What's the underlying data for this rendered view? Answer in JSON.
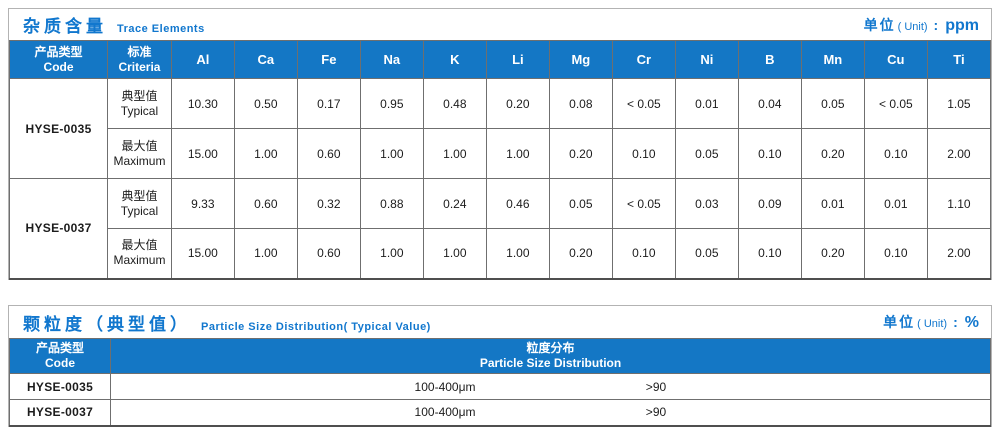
{
  "colors": {
    "header_bg": "#1477c5",
    "title_blue": "#1177ce"
  },
  "table1": {
    "title_zh": "杂质含量",
    "title_en": "Trace Elements",
    "unit_label_zh": "单位",
    "unit_label_en": "( Unit)",
    "unit_colon": ":",
    "unit_value": "ppm",
    "col_code_zh": "产品类型",
    "col_code_en": "Code",
    "col_criteria_zh": "标准",
    "col_criteria_en": "Criteria",
    "elements": [
      "Al",
      "Ca",
      "Fe",
      "Na",
      "K",
      "Li",
      "Mg",
      "Cr",
      "Ni",
      "B",
      "Mn",
      "Cu",
      "Ti"
    ],
    "products": [
      {
        "code": "HYSE-0035",
        "rows": [
          {
            "criteria_zh": "典型值",
            "criteria_en": "Typical",
            "values": [
              "10.30",
              "0.50",
              "0.17",
              "0.95",
              "0.48",
              "0.20",
              "0.08",
              "< 0.05",
              "0.01",
              "0.04",
              "0.05",
              "< 0.05",
              "1.05"
            ]
          },
          {
            "criteria_zh": "最大值",
            "criteria_en": "Maximum",
            "values": [
              "15.00",
              "1.00",
              "0.60",
              "1.00",
              "1.00",
              "1.00",
              "0.20",
              "0.10",
              "0.05",
              "0.10",
              "0.20",
              "0.10",
              "2.00"
            ]
          }
        ]
      },
      {
        "code": "HYSE-0037",
        "rows": [
          {
            "criteria_zh": "典型值",
            "criteria_en": "Typical",
            "values": [
              "9.33",
              "0.60",
              "0.32",
              "0.88",
              "0.24",
              "0.46",
              "0.05",
              "< 0.05",
              "0.03",
              "0.09",
              "0.01",
              "0.01",
              "1.10"
            ]
          },
          {
            "criteria_zh": "最大值",
            "criteria_en": "Maximum",
            "values": [
              "15.00",
              "1.00",
              "0.60",
              "1.00",
              "1.00",
              "1.00",
              "0.20",
              "0.10",
              "0.05",
              "0.10",
              "0.20",
              "0.10",
              "2.00"
            ]
          }
        ]
      }
    ]
  },
  "table2": {
    "title_zh": "颗粒度（典型值）",
    "title_en": "Particle Size Distribution( Typical Value)",
    "unit_label_zh": "单位",
    "unit_label_en": "( Unit)",
    "unit_colon": ":",
    "unit_value": "%",
    "col_code_zh": "产品类型",
    "col_code_en": "Code",
    "col_dist_zh": "粒度分布",
    "col_dist_en": "Particle Size  Distribution",
    "rows": [
      {
        "code": "HYSE-0035",
        "range": "100-400μm",
        "value": ">90"
      },
      {
        "code": "HYSE-0037",
        "range": "100-400μm",
        "value": ">90"
      }
    ]
  }
}
